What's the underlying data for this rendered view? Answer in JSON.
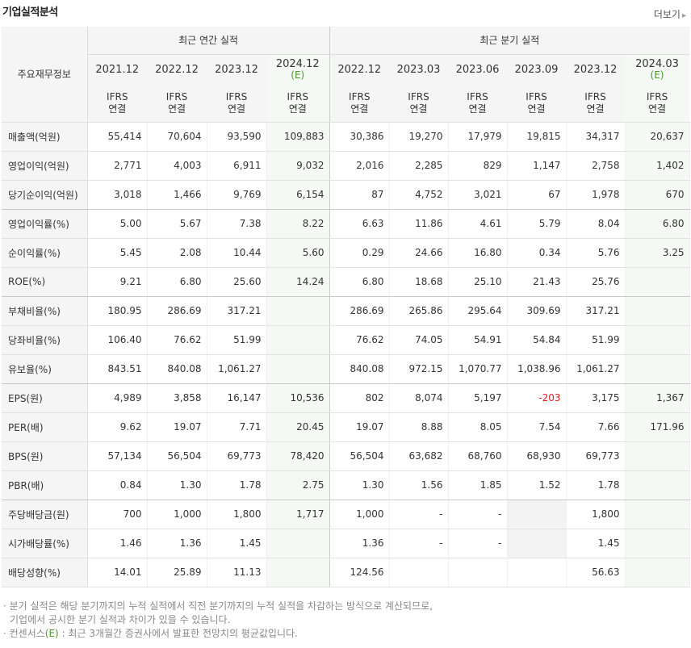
{
  "title": "기업실적분석",
  "more": {
    "label": "더보기",
    "arrow": "▸"
  },
  "header": {
    "row_label": "주요재무정보",
    "annual_group": "최근 연간 실적",
    "quarter_group": "최근 분기 실적",
    "annual_periods": [
      "2021.12",
      "2022.12",
      "2023.12",
      "2024.12"
    ],
    "quarter_periods": [
      "2022.12",
      "2023.03",
      "2023.06",
      "2023.09",
      "2023.12",
      "2024.03"
    ],
    "estimate_mark": "(E)",
    "ifrs_line1": "IFRS",
    "ifrs_line2": "연결"
  },
  "rows": [
    {
      "label": "매출액(억원)",
      "values": [
        "55,414",
        "70,604",
        "93,590",
        "109,883",
        "30,386",
        "19,270",
        "17,979",
        "19,815",
        "34,317",
        "20,637"
      ]
    },
    {
      "label": "영업이익(억원)",
      "values": [
        "2,771",
        "4,003",
        "6,911",
        "9,032",
        "2,016",
        "2,285",
        "829",
        "1,147",
        "2,758",
        "1,402"
      ]
    },
    {
      "label": "당기순이익(억원)",
      "values": [
        "3,018",
        "1,466",
        "9,769",
        "6,154",
        "87",
        "4,752",
        "3,021",
        "67",
        "1,978",
        "670"
      ]
    },
    {
      "label": "영업이익률(%)",
      "values": [
        "5.00",
        "5.67",
        "7.38",
        "8.22",
        "6.63",
        "11.86",
        "4.61",
        "5.79",
        "8.04",
        "6.80"
      ]
    },
    {
      "label": "순이익률(%)",
      "values": [
        "5.45",
        "2.08",
        "10.44",
        "5.60",
        "0.29",
        "24.66",
        "16.80",
        "0.34",
        "5.76",
        "3.25"
      ]
    },
    {
      "label": "ROE(%)",
      "values": [
        "9.21",
        "6.80",
        "25.60",
        "14.24",
        "6.80",
        "18.68",
        "25.10",
        "21.43",
        "25.76",
        ""
      ]
    },
    {
      "label": "부채비율(%)",
      "values": [
        "180.95",
        "286.69",
        "317.21",
        "",
        "286.69",
        "265.86",
        "295.64",
        "309.69",
        "317.21",
        ""
      ]
    },
    {
      "label": "당좌비율(%)",
      "values": [
        "106.40",
        "76.62",
        "51.99",
        "",
        "76.62",
        "74.05",
        "54.91",
        "54.84",
        "51.99",
        ""
      ]
    },
    {
      "label": "유보율(%)",
      "values": [
        "843.51",
        "840.08",
        "1,061.27",
        "",
        "840.08",
        "972.15",
        "1,070.77",
        "1,038.96",
        "1,061.27",
        ""
      ]
    },
    {
      "label": "EPS(원)",
      "values": [
        "4,989",
        "3,858",
        "16,147",
        "10,536",
        "802",
        "8,074",
        "5,197",
        "-203",
        "3,175",
        "1,367"
      ]
    },
    {
      "label": "PER(배)",
      "values": [
        "9.62",
        "19.07",
        "7.71",
        "20.45",
        "19.07",
        "8.88",
        "8.05",
        "7.54",
        "7.66",
        "171.96"
      ]
    },
    {
      "label": "BPS(원)",
      "values": [
        "57,134",
        "56,504",
        "69,773",
        "78,420",
        "56,504",
        "63,682",
        "68,760",
        "68,930",
        "69,773",
        ""
      ]
    },
    {
      "label": "PBR(배)",
      "values": [
        "0.84",
        "1.30",
        "1.78",
        "2.75",
        "1.30",
        "1.56",
        "1.85",
        "1.52",
        "1.78",
        ""
      ]
    },
    {
      "label": "주당배당금(원)",
      "values": [
        "700",
        "1,000",
        "1,800",
        "1,717",
        "1,000",
        "-",
        "-",
        "",
        "1,800",
        ""
      ]
    },
    {
      "label": "시가배당률(%)",
      "values": [
        "1.46",
        "1.36",
        "1.45",
        "",
        "1.36",
        "-",
        "-",
        "",
        "1.45",
        ""
      ]
    },
    {
      "label": "배당성향(%)",
      "values": [
        "14.01",
        "25.89",
        "11.13",
        "",
        "124.56",
        "",
        "",
        "",
        "56.63",
        ""
      ]
    }
  ],
  "notes": {
    "line1": "· 분기 실적은 해당 분기까지의 누적 실적에서 직전 분기까지의 누적 실적을 차감하는 방식으로 계산되므로,",
    "line2": "기업에서 공시한 분기 실적과 차이가 있을 수 있습니다.",
    "line3_prefix": "· 컨센서스",
    "line3_mark": "(E)",
    "line3_suffix": " : 최근 3개월간 증권사에서 발표한 전망치의 평균값입니다."
  }
}
